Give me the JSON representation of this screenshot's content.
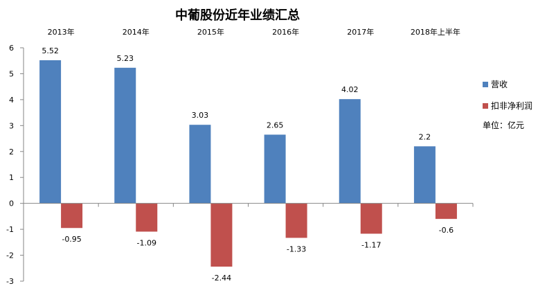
{
  "chart_data": {
    "type": "bar",
    "title": "中葡股份近年业绩汇总",
    "categories": [
      "2013年",
      "2014年",
      "2015年",
      "2016年",
      "2017年",
      "2018年上半年"
    ],
    "series": [
      {
        "name": "营收",
        "values": [
          5.52,
          5.23,
          3.03,
          2.65,
          4.02,
          2.2
        ],
        "labels": [
          "5.52",
          "5.23",
          "3.03",
          "2.65",
          "4.02",
          "2.2"
        ],
        "color": "#4f81bd"
      },
      {
        "name": "扣非净利润",
        "values": [
          -0.95,
          -1.09,
          -2.44,
          -1.33,
          -1.17,
          -0.6
        ],
        "labels": [
          "-0.95",
          "-1.09",
          "-2.44",
          "-1.33",
          "-1.17",
          "-0.6"
        ],
        "color": "#c0504d"
      }
    ],
    "ylim": [
      -3,
      6
    ],
    "yticks": [
      -3,
      -2,
      -1,
      0,
      1,
      2,
      3,
      4,
      5,
      6
    ],
    "category_labels_position": "top",
    "legend_position": "right",
    "unit_note": "单位：亿元",
    "grid": false
  }
}
